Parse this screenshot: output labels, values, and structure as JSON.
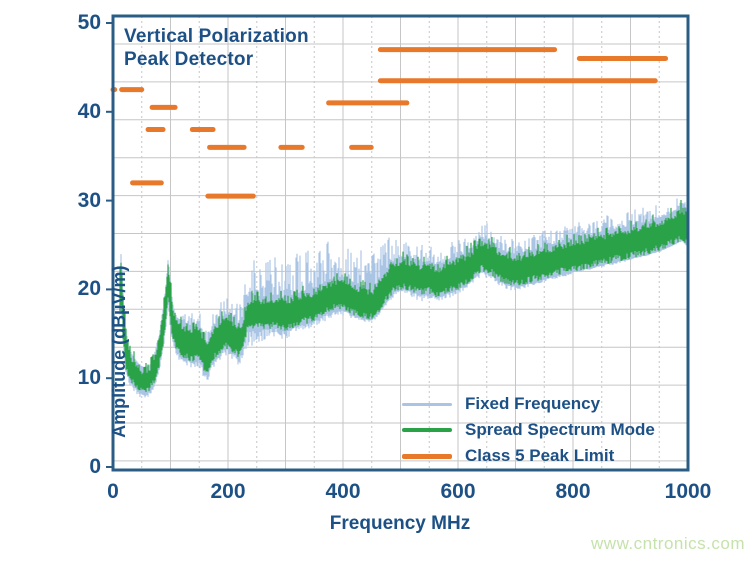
{
  "watermark": {
    "text": "www.cntronics.com",
    "color": "#c6e2ac"
  },
  "chart_data": {
    "type": "line",
    "title": "Vertical Polarization Peak Detector",
    "title_lines": [
      "Vertical Polarization",
      "Peak Detector"
    ],
    "xlabel": "Frequency MHz",
    "ylabel": "Amplitude (dBµV/m)",
    "xlim": [
      0,
      1000
    ],
    "ylim": [
      0,
      50
    ],
    "xticks": [
      0,
      200,
      400,
      600,
      800,
      1000
    ],
    "yticks": [
      0,
      10,
      20,
      30,
      40,
      50
    ],
    "grid": true,
    "legend_position": "inside-bottom-right",
    "colors": {
      "fixed_frequency": "#aac4e4",
      "spread_spectrum": "#2aa248",
      "class5_limit": "#e8792b",
      "text": "#1d5185",
      "frame": "#2a5c85",
      "grid": "#c6c6c6"
    },
    "series": [
      {
        "name": "Fixed Frequency",
        "type": "noisy_envelope_band",
        "color": "#aac4e4",
        "units": {
          "x": "MHz",
          "y": "dBµV/m"
        },
        "points_x_top_bottom": [
          [
            11,
            21,
            15.5
          ],
          [
            13,
            24.5,
            18
          ],
          [
            15,
            23.5,
            17
          ],
          [
            18,
            19.5,
            13
          ],
          [
            22,
            15.5,
            10.5
          ],
          [
            27,
            13.5,
            9.5
          ],
          [
            33,
            12.5,
            8.8
          ],
          [
            40,
            12,
            8.3
          ],
          [
            48,
            11.5,
            7.8
          ],
          [
            56,
            11,
            7.5
          ],
          [
            64,
            11.5,
            8
          ],
          [
            72,
            12.8,
            9
          ],
          [
            80,
            15,
            10.5
          ],
          [
            86,
            17.5,
            12.5
          ],
          [
            92,
            20.5,
            15.5
          ],
          [
            96,
            23.8,
            18.5
          ],
          [
            100,
            20.5,
            15
          ],
          [
            105,
            18,
            13.3
          ],
          [
            112,
            17.3,
            12.3
          ],
          [
            120,
            17.3,
            11.5
          ],
          [
            130,
            17.2,
            11
          ],
          [
            140,
            17.5,
            10.8
          ],
          [
            150,
            17.5,
            11
          ],
          [
            158,
            16.3,
            9.8
          ],
          [
            164,
            15.8,
            9.5
          ],
          [
            170,
            17,
            10.5
          ],
          [
            178,
            18,
            11.5
          ],
          [
            186,
            18.8,
            12
          ],
          [
            194,
            19.2,
            12.3
          ],
          [
            202,
            19.2,
            12.5
          ],
          [
            210,
            18.8,
            12
          ],
          [
            218,
            18.3,
            11.5
          ],
          [
            226,
            18.8,
            12
          ],
          [
            233,
            22.5,
            13
          ],
          [
            238,
            23.3,
            13.3
          ],
          [
            245,
            23.5,
            13.3
          ],
          [
            255,
            23.3,
            13.4
          ],
          [
            270,
            23.6,
            13.8
          ],
          [
            285,
            24,
            14.2
          ],
          [
            300,
            23.8,
            14.4
          ],
          [
            315,
            24.2,
            14.8
          ],
          [
            330,
            24.5,
            15.2
          ],
          [
            345,
            24.8,
            15.6
          ],
          [
            360,
            25.2,
            16.1
          ],
          [
            375,
            25.5,
            16.6
          ],
          [
            390,
            25.3,
            17.1
          ],
          [
            405,
            25,
            17
          ],
          [
            420,
            24.6,
            16.6
          ],
          [
            435,
            24.8,
            16.3
          ],
          [
            450,
            25.2,
            16.2
          ],
          [
            462,
            25.5,
            17
          ],
          [
            475,
            26,
            18.2
          ],
          [
            490,
            26.3,
            19
          ],
          [
            505,
            26,
            19.2
          ],
          [
            520,
            25.6,
            19
          ],
          [
            535,
            25.2,
            18.6
          ],
          [
            550,
            25.4,
            18.8
          ],
          [
            565,
            25,
            18.4
          ],
          [
            580,
            25.4,
            18.9
          ],
          [
            595,
            25.7,
            19.3
          ],
          [
            610,
            26.2,
            19.8
          ],
          [
            625,
            27.2,
            20.5
          ],
          [
            640,
            27.8,
            21.5
          ],
          [
            655,
            27.4,
            21.2
          ],
          [
            670,
            26.6,
            20.5
          ],
          [
            685,
            26,
            20
          ],
          [
            700,
            25.8,
            19.8
          ],
          [
            715,
            26,
            20.1
          ],
          [
            730,
            26.3,
            20.4
          ],
          [
            750,
            26.7,
            20.8
          ],
          [
            770,
            27,
            21.2
          ],
          [
            790,
            27.3,
            21.5
          ],
          [
            810,
            27.6,
            21.9
          ],
          [
            830,
            27.9,
            22.2
          ],
          [
            850,
            28.2,
            22.5
          ],
          [
            870,
            28.5,
            22.8
          ],
          [
            890,
            28.8,
            23.1
          ],
          [
            910,
            29.1,
            23.5
          ],
          [
            930,
            29.5,
            23.8
          ],
          [
            950,
            29.9,
            24.2
          ],
          [
            965,
            30.2,
            24.6
          ],
          [
            980,
            30.5,
            25.1
          ],
          [
            990,
            30.2,
            25.4
          ],
          [
            1000,
            29.6,
            24.7
          ]
        ]
      },
      {
        "name": "Spread Spectrum Mode",
        "type": "noisy_envelope_band",
        "color": "#2aa248",
        "units": {
          "x": "MHz",
          "y": "dBµV/m"
        },
        "points_x_top_bottom": [
          [
            11,
            20,
            16
          ],
          [
            13,
            23.8,
            18.5
          ],
          [
            15,
            23,
            17.5
          ],
          [
            18,
            19,
            13.5
          ],
          [
            22,
            15.5,
            11
          ],
          [
            27,
            13.5,
            10
          ],
          [
            33,
            12.5,
            9.3
          ],
          [
            40,
            11.8,
            8.8
          ],
          [
            48,
            11.2,
            8.3
          ],
          [
            56,
            11,
            8
          ],
          [
            64,
            11.3,
            8.5
          ],
          [
            72,
            12.5,
            9.5
          ],
          [
            80,
            14.5,
            11
          ],
          [
            86,
            17,
            13
          ],
          [
            92,
            20,
            16
          ],
          [
            96,
            23.3,
            19.2
          ],
          [
            100,
            20.5,
            16
          ],
          [
            105,
            17.5,
            13.8
          ],
          [
            112,
            16.5,
            12.8
          ],
          [
            120,
            16,
            12.2
          ],
          [
            130,
            15.8,
            12
          ],
          [
            140,
            15.5,
            11.8
          ],
          [
            150,
            16,
            12
          ],
          [
            158,
            14.5,
            10.8
          ],
          [
            164,
            13.8,
            10.2
          ],
          [
            170,
            15,
            11.2
          ],
          [
            178,
            16,
            12.2
          ],
          [
            186,
            16.5,
            12.8
          ],
          [
            194,
            17,
            13.2
          ],
          [
            202,
            17,
            13.3
          ],
          [
            210,
            16.5,
            12.8
          ],
          [
            218,
            16,
            12.3
          ],
          [
            226,
            16.5,
            12.8
          ],
          [
            233,
            18.8,
            15.2
          ],
          [
            238,
            19,
            15.4
          ],
          [
            245,
            19,
            15.4
          ],
          [
            255,
            19,
            15.4
          ],
          [
            270,
            19,
            15.5
          ],
          [
            285,
            19.2,
            15.6
          ],
          [
            300,
            18.8,
            15.2
          ],
          [
            315,
            19.3,
            15.7
          ],
          [
            330,
            19.5,
            16
          ],
          [
            345,
            19.8,
            16.3
          ],
          [
            360,
            20.3,
            16.8
          ],
          [
            375,
            20.8,
            17.3
          ],
          [
            390,
            21.2,
            17.7
          ],
          [
            405,
            21,
            17.5
          ],
          [
            420,
            20.5,
            17
          ],
          [
            435,
            20.2,
            16.7
          ],
          [
            450,
            20,
            16.5
          ],
          [
            462,
            20.8,
            17.3
          ],
          [
            475,
            22,
            18.5
          ],
          [
            490,
            23.2,
            19.7
          ],
          [
            505,
            23.5,
            20
          ],
          [
            520,
            23.2,
            19.7
          ],
          [
            535,
            22.8,
            19.3
          ],
          [
            550,
            23,
            19.5
          ],
          [
            565,
            22.5,
            19
          ],
          [
            580,
            23,
            19.5
          ],
          [
            595,
            23.3,
            19.8
          ],
          [
            610,
            23.8,
            20.3
          ],
          [
            625,
            24.5,
            21
          ],
          [
            640,
            25.5,
            22
          ],
          [
            655,
            25.2,
            21.7
          ],
          [
            670,
            24.5,
            21
          ],
          [
            685,
            24,
            20.5
          ],
          [
            700,
            23.8,
            20.3
          ],
          [
            715,
            24,
            20.5
          ],
          [
            730,
            24.3,
            20.8
          ],
          [
            750,
            24.6,
            21.1
          ],
          [
            770,
            25,
            21.5
          ],
          [
            790,
            25.3,
            21.8
          ],
          [
            810,
            25.6,
            22.1
          ],
          [
            830,
            25.9,
            22.4
          ],
          [
            850,
            26.2,
            22.7
          ],
          [
            870,
            26.5,
            23
          ],
          [
            890,
            26.8,
            23.3
          ],
          [
            910,
            27.1,
            23.6
          ],
          [
            930,
            27.4,
            23.9
          ],
          [
            950,
            27.8,
            24.3
          ],
          [
            965,
            28.2,
            24.7
          ],
          [
            980,
            28.8,
            25.2
          ],
          [
            990,
            29.3,
            25.5
          ],
          [
            1000,
            28.6,
            24.8
          ]
        ]
      },
      {
        "name": "Class 5 Peak Limit",
        "type": "limit_segments",
        "color": "#e8792b",
        "units": {
          "x": "MHz",
          "y": "dBµV/m"
        },
        "segments_f1_f2_level": [
          [
            0,
            3,
            42.5
          ],
          [
            15,
            50,
            42.5
          ],
          [
            34,
            84,
            32
          ],
          [
            61,
            87,
            38
          ],
          [
            68,
            108,
            40.5
          ],
          [
            138,
            174,
            38
          ],
          [
            165,
            244,
            30.5
          ],
          [
            168,
            228,
            36
          ],
          [
            292,
            329,
            36
          ],
          [
            375,
            511,
            41
          ],
          [
            415,
            449,
            36
          ],
          [
            465,
            768,
            47
          ],
          [
            465,
            943,
            43.5
          ],
          [
            811,
            961,
            46
          ]
        ]
      }
    ]
  },
  "legend": {
    "items": [
      {
        "label": "Fixed Frequency",
        "color": "#aac4e4",
        "thickness": 3
      },
      {
        "label": "Spread Spectrum Mode",
        "color": "#2aa248",
        "thickness": 4
      },
      {
        "label": "Class 5 Peak Limit",
        "color": "#e8792b",
        "thickness": 5
      }
    ]
  }
}
